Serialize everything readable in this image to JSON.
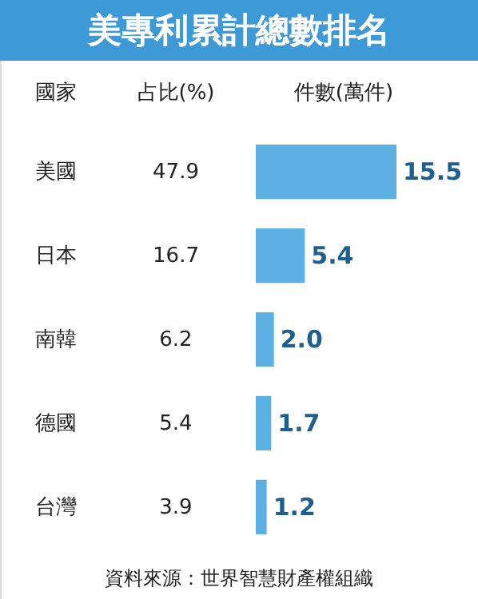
{
  "chart_data": {
    "type": "bar",
    "orientation": "horizontal",
    "title": "美專利累計總數排名",
    "ylabel": "國家",
    "xlabel": "件數(萬件)",
    "categories": [
      "美國",
      "日本",
      "南韓",
      "德國",
      "台灣"
    ],
    "series": [
      {
        "color": "#5cb0e4",
        "values": [
          15.5,
          5.4,
          2.0,
          1.7,
          1.2
        ],
        "value_labels": [
          "15.5",
          "5.4",
          "2.0",
          "1.7",
          "1.2"
        ]
      }
    ],
    "annotations": [
      "占比(%)",
      "47.9",
      "16.7",
      "6.2",
      "5.4",
      "3.9",
      "資料來源：世界智慧財產權組織"
    ]
  }
}
